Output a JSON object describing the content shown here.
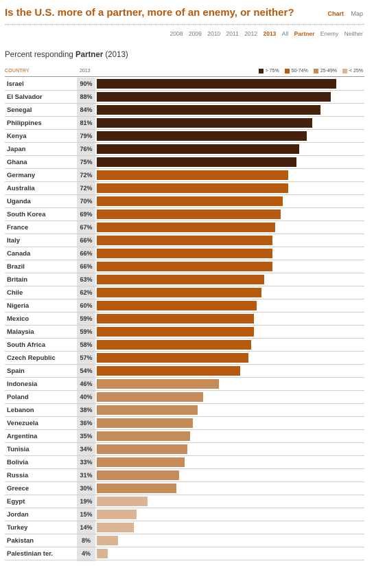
{
  "header": {
    "title": "Is the U.S. more of a partner, more of an enemy, or neither?",
    "view_toggle": {
      "chart": "Chart",
      "map": "Map",
      "active": "Chart"
    }
  },
  "filters": {
    "years": [
      "2008",
      "2009",
      "2010",
      "2011",
      "2012",
      "2013",
      "All"
    ],
    "responses": [
      "Partner",
      "Enemy",
      "Neither"
    ],
    "active_year": "2013",
    "active_response": "Partner"
  },
  "subtitle": {
    "prefix": "Percent responding",
    "highlight": "Partner",
    "suffix": "(2013)"
  },
  "columns": {
    "country": "COUNTRY",
    "year": "2013"
  },
  "legend": [
    {
      "label": "> 75%",
      "color": "#45200a"
    },
    {
      "label": "50-74%",
      "color": "#b85a0e"
    },
    {
      "label": "25-49%",
      "color": "#c58b58"
    },
    {
      "label": "< 25%",
      "color": "#d9b596"
    }
  ],
  "chart_data": {
    "type": "bar",
    "orientation": "horizontal",
    "unit": "%",
    "xlim": [
      0,
      100
    ],
    "categories": [
      "Israel",
      "El Salvador",
      "Senegal",
      "Philippines",
      "Kenya",
      "Japan",
      "Ghana",
      "Germany",
      "Australia",
      "Uganda",
      "South Korea",
      "France",
      "Italy",
      "Canada",
      "Brazil",
      "Britain",
      "Chile",
      "Nigeria",
      "Mexico",
      "Malaysia",
      "South Africa",
      "Czech Republic",
      "Spain",
      "Indonesia",
      "Poland",
      "Lebanon",
      "Venezuela",
      "Argentina",
      "Tunisia",
      "Bolivia",
      "Russia",
      "Greece",
      "Egypt",
      "Jordan",
      "Turkey",
      "Pakistan",
      "Palestinian ter."
    ],
    "values": [
      90,
      88,
      84,
      81,
      79,
      76,
      75,
      72,
      72,
      70,
      69,
      67,
      66,
      66,
      66,
      63,
      62,
      60,
      59,
      59,
      58,
      57,
      54,
      46,
      40,
      38,
      36,
      35,
      34,
      33,
      31,
      30,
      19,
      15,
      14,
      8,
      4
    ]
  }
}
